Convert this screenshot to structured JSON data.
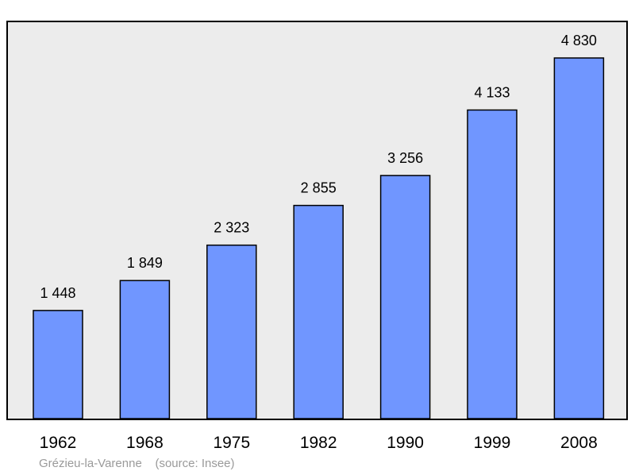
{
  "chart_data": {
    "type": "bar",
    "categories": [
      "1962",
      "1968",
      "1975",
      "1982",
      "1990",
      "1999",
      "2008"
    ],
    "values": [
      1448,
      1849,
      2323,
      2855,
      3256,
      4133,
      4830
    ],
    "value_labels": [
      "1 448",
      "1 849",
      "2 323",
      "2 855",
      "3 256",
      "4 133",
      "4 830"
    ],
    "ylim": [
      0,
      5000
    ],
    "grid": false,
    "legend": "none"
  },
  "caption": {
    "place": "Grézieu-la-Varenne",
    "source": "(source: Insee)"
  },
  "colors": {
    "bar": "#7096ff",
    "plot_background": "#ececec",
    "frame": "#000000"
  }
}
